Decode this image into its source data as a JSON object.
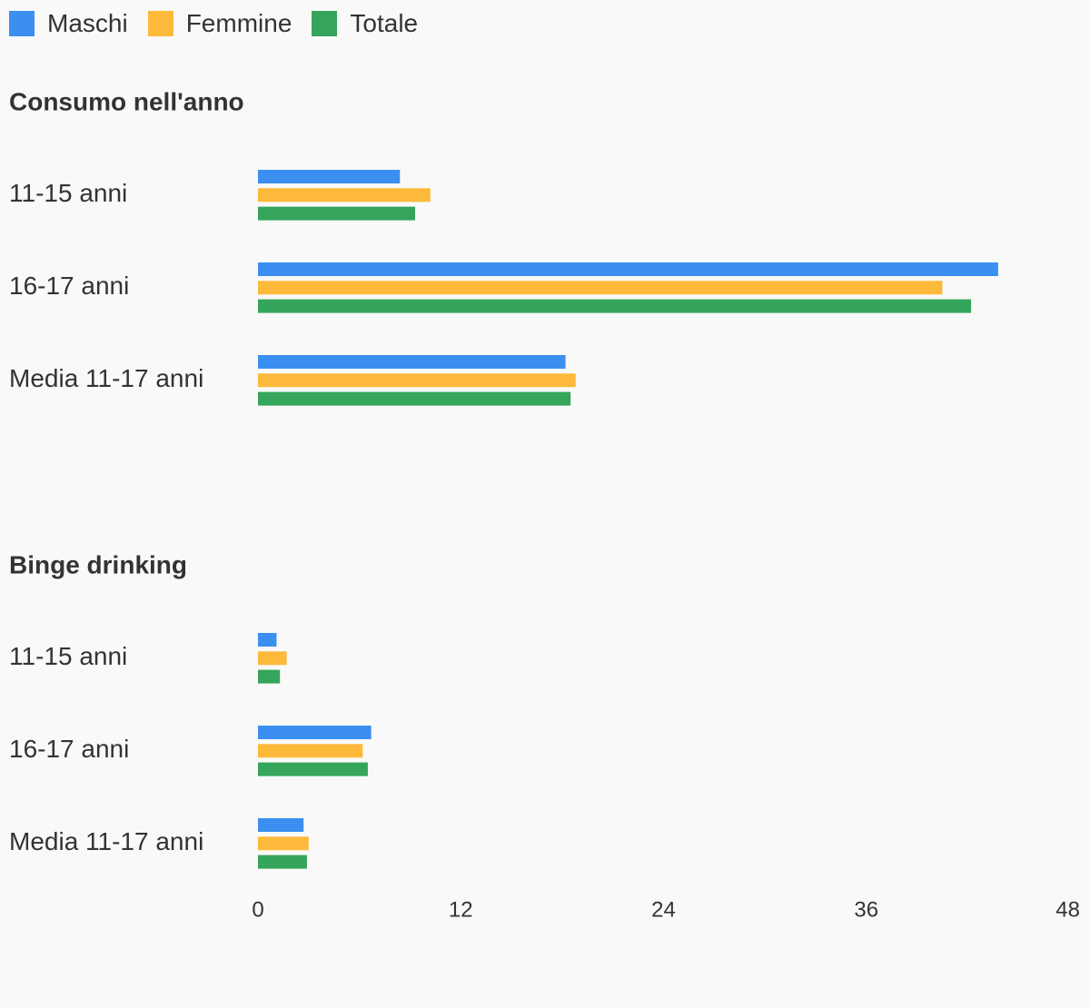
{
  "legend": [
    {
      "name": "Maschi",
      "color": "#3a8ff0"
    },
    {
      "name": "Femmine",
      "color": "#fdb93a"
    },
    {
      "name": "Totale",
      "color": "#34a55a"
    }
  ],
  "chart_data": {
    "type": "bar",
    "orientation": "horizontal",
    "legend_position": "top-left",
    "grid": false,
    "xlim": [
      0,
      48
    ],
    "xticks": [
      "0",
      "12",
      "24",
      "36",
      "48"
    ],
    "sections": [
      {
        "title": "Consumo nell'anno",
        "categories": [
          "11-15 anni",
          "16-17 anni",
          "Media 11-17 anni"
        ],
        "series": [
          {
            "name": "Maschi",
            "values": [
              8.4,
              43.8,
              18.2
            ]
          },
          {
            "name": "Femmine",
            "values": [
              10.2,
              40.5,
              18.8
            ]
          },
          {
            "name": "Totale",
            "values": [
              9.3,
              42.2,
              18.5
            ]
          }
        ]
      },
      {
        "title": "Binge drinking",
        "categories": [
          "11-15 anni",
          "16-17 anni",
          "Media 11-17 anni"
        ],
        "series": [
          {
            "name": "Maschi",
            "values": [
              1.1,
              6.7,
              2.7
            ]
          },
          {
            "name": "Femmine",
            "values": [
              1.7,
              6.2,
              3.0
            ]
          },
          {
            "name": "Totale",
            "values": [
              1.3,
              6.5,
              2.9
            ]
          }
        ]
      }
    ]
  }
}
